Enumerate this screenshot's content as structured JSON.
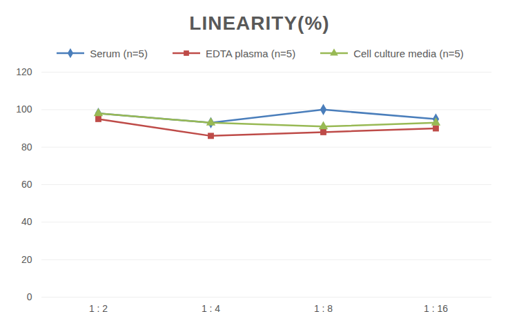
{
  "chart_data": {
    "type": "line",
    "title": "LINEARITY(%)",
    "categories": [
      "1 : 2",
      "1 : 4",
      "1 : 8",
      "1 : 16"
    ],
    "series": [
      {
        "name": "Serum (n=5)",
        "color": "#4a7ebb",
        "marker": "diamond",
        "values": [
          98,
          93,
          100,
          95
        ]
      },
      {
        "name": "EDTA plasma (n=5)",
        "color": "#be4b48",
        "marker": "square",
        "values": [
          95,
          86,
          88,
          90
        ]
      },
      {
        "name": "Cell culture media (n=5)",
        "color": "#98b954",
        "marker": "triangle",
        "values": [
          98,
          93,
          91,
          93
        ]
      }
    ],
    "ylim": [
      0,
      120
    ],
    "yticks": [
      0,
      20,
      40,
      60,
      80,
      100,
      120
    ],
    "grid": true,
    "legend": "top"
  }
}
